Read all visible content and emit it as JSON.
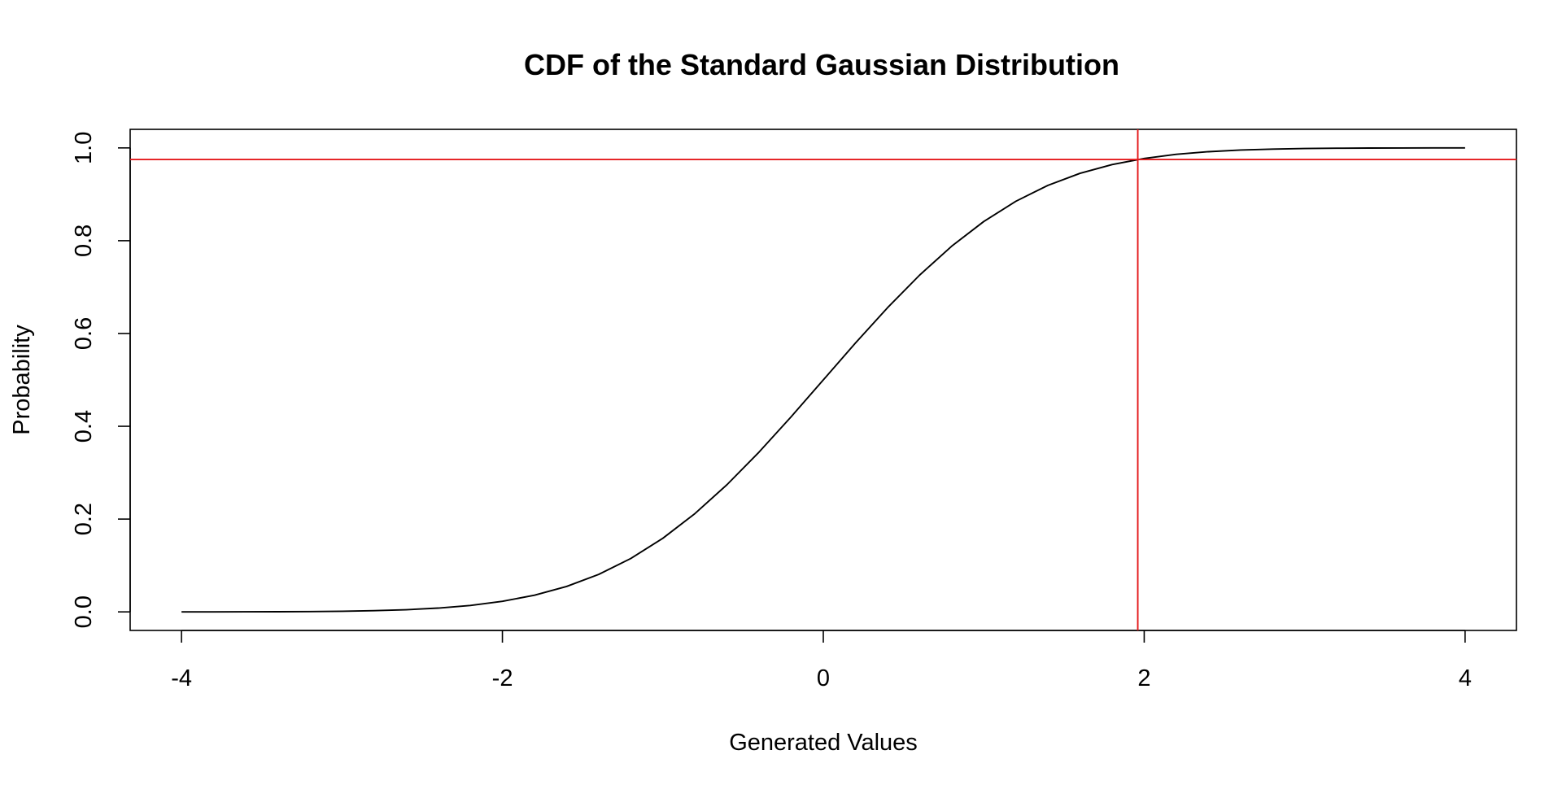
{
  "chart_data": {
    "type": "line",
    "title": "CDF of the Standard Gaussian Distribution",
    "xlabel": "Generated Values",
    "ylabel": "Probability",
    "xlim": [
      -4.32,
      4.32
    ],
    "ylim": [
      -0.04,
      1.04
    ],
    "x_ticks": [
      -4,
      -2,
      0,
      2,
      4
    ],
    "x_tick_labels": [
      "-4",
      "-2",
      "0",
      "2",
      "4"
    ],
    "y_ticks": [
      0,
      0.2,
      0.4,
      0.6,
      0.8,
      1
    ],
    "y_tick_labels": [
      "0.0",
      "0.2",
      "0.4",
      "0.6",
      "0.8",
      "1.0"
    ],
    "grid": false,
    "legend": "none",
    "series": [
      {
        "x": [
          -4.0,
          -3.8,
          -3.6,
          -3.4,
          -3.2,
          -3.0,
          -2.8,
          -2.6,
          -2.4,
          -2.2,
          -2.0,
          -1.8,
          -1.6,
          -1.4,
          -1.2,
          -1.0,
          -0.8,
          -0.6,
          -0.4,
          -0.2,
          0.0,
          0.2,
          0.4,
          0.6,
          0.8,
          1.0,
          1.2,
          1.4,
          1.6,
          1.8,
          2.0,
          2.2,
          2.4,
          2.6,
          2.8,
          3.0,
          3.2,
          3.4,
          3.6,
          3.8,
          4.0
        ],
        "y": [
          3e-05,
          7e-05,
          0.00016,
          0.00034,
          0.00069,
          0.00135,
          0.00256,
          0.00466,
          0.0082,
          0.0139,
          0.02275,
          0.03593,
          0.0548,
          0.08076,
          0.11507,
          0.15866,
          0.21186,
          0.27425,
          0.34458,
          0.42074,
          0.5,
          0.57926,
          0.65542,
          0.72575,
          0.78814,
          0.84134,
          0.88493,
          0.91924,
          0.9452,
          0.96407,
          0.97725,
          0.9861,
          0.9918,
          0.99534,
          0.99744,
          0.99865,
          0.99931,
          0.99966,
          0.99984,
          0.99993,
          0.99997
        ],
        "color": "#000000"
      }
    ],
    "reference_lines": [
      {
        "orientation": "vertical",
        "value": 1.96,
        "color": "#e41a1c"
      },
      {
        "orientation": "horizontal",
        "value": 0.975,
        "color": "#e41a1c"
      }
    ]
  }
}
